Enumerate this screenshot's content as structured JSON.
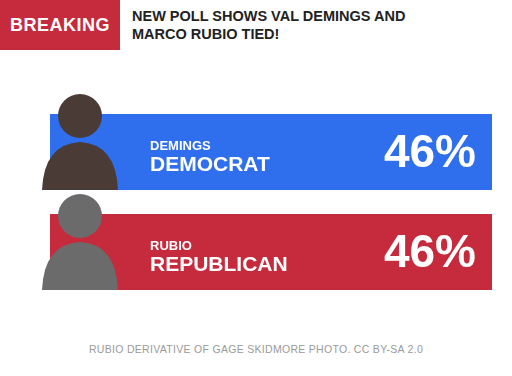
{
  "chart_data": {
    "type": "bar",
    "orientation": "horizontal",
    "title": "NEW POLL SHOWS VAL DEMINGS AND MARCO RUBIO TIED!",
    "annotations": [
      "BREAKING",
      "RUBIO DERIVATIVE OF GAGE SKIDMORE PHOTO. CC BY-SA 2.0"
    ],
    "categories": [
      "DEMINGS DEMOCRAT",
      "RUBIO REPUBLICAN"
    ],
    "values": [
      46,
      46
    ],
    "value_labels": [
      "46%",
      "46%"
    ],
    "colors": [
      "#2f6fee",
      "#c62a3d"
    ],
    "xlim": [
      0,
      46
    ],
    "tick_labels": false,
    "grid": false,
    "data_labels": true
  }
}
